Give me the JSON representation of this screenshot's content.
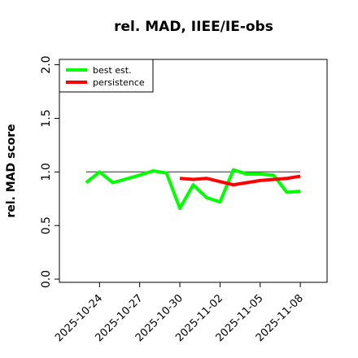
{
  "chart_data": {
    "type": "line",
    "title": "rel. MAD, IIEE/IE-obs",
    "y_label": "rel. MAD score",
    "x": [
      "2025-10-23",
      "2025-10-24",
      "2025-10-25",
      "2025-10-26",
      "2025-10-27",
      "2025-10-28",
      "2025-10-29",
      "2025-10-30",
      "2025-10-31",
      "2025-11-01",
      "2025-11-02",
      "2025-11-03",
      "2025-11-04",
      "2025-11-05",
      "2025-11-06",
      "2025-11-07",
      "2025-11-08"
    ],
    "series": [
      {
        "name": "best est.",
        "color": "#00ff00",
        "values": [
          0.9,
          1.0,
          0.9,
          0.935,
          0.97,
          1.01,
          0.99,
          0.66,
          0.88,
          0.76,
          0.72,
          1.02,
          0.98,
          0.98,
          0.97,
          0.81,
          0.82
        ]
      },
      {
        "name": "persistence",
        "color": "#ff0000",
        "values": [
          null,
          null,
          null,
          null,
          null,
          null,
          null,
          0.94,
          0.93,
          0.94,
          0.91,
          0.88,
          0.9,
          0.92,
          0.93,
          0.94,
          0.96
        ]
      }
    ],
    "reference_line": 1,
    "xlim": [
      "2025-10-21",
      "2025-11-10"
    ],
    "xticks": [
      "2025-10-24",
      "2025-10-27",
      "2025-10-30",
      "2025-11-02",
      "2025-11-05",
      "2025-11-08"
    ],
    "ylim": [
      -0.03,
      2.05
    ],
    "yticks": [
      {
        "value": 0,
        "label": "0.0"
      },
      0.5,
      {
        "value": 1,
        "label": "1.0"
      },
      1.5,
      {
        "value": 2,
        "label": "2.0"
      }
    ],
    "legend": "top-left"
  }
}
